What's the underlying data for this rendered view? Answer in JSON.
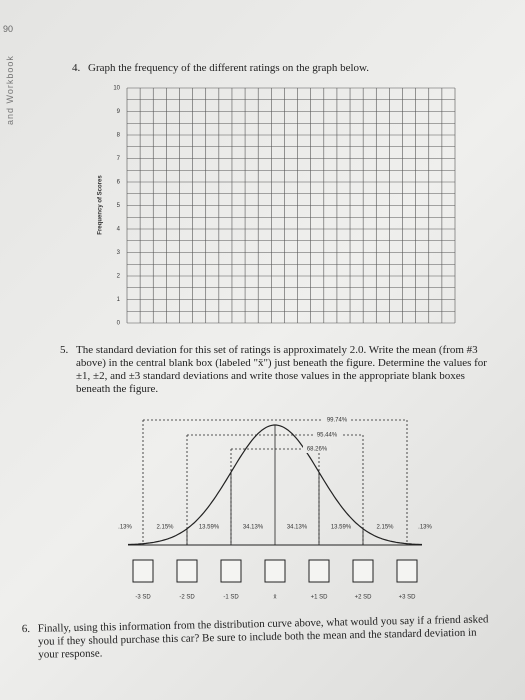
{
  "page_number": "90",
  "side_text": "and Workbook",
  "questions": [
    {
      "number": "4.",
      "text": "Graph the frequency of the different ratings on the graph below."
    },
    {
      "number": "5.",
      "text": "The standard deviation for this set of ratings is approximately 2.0. Write the mean (from #3 above) in the central blank box (labeled \"x̄\") just beneath the figure. Determine the values for ±1, ±2, and ±3 standard deviations and write those values in the appropriate blank boxes beneath the figure."
    },
    {
      "number": "6.",
      "text": "Finally, using this information from the distribution curve above, what would you say if a friend asked you if they should purchase this car? Be sure to include both the mean and the standard deviation in your response."
    }
  ],
  "graph": {
    "y_label": "Frequency of Scores",
    "y_ticks": [
      0,
      1,
      2,
      3,
      4,
      5,
      6,
      7,
      8,
      9,
      10
    ]
  },
  "curve": {
    "ranges": [
      "99.74%",
      "95.44%",
      "68.26%"
    ],
    "segments": [
      ".13%",
      "2.15%",
      "13.59%",
      "34.13%",
      "34.13%",
      "13.59%",
      "2.15%",
      ".13%"
    ],
    "boxes": [
      "-3 SD",
      "-2 SD",
      "-1 SD",
      "x̄",
      "+1 SD",
      "+2 SD",
      "+3 SD"
    ]
  }
}
